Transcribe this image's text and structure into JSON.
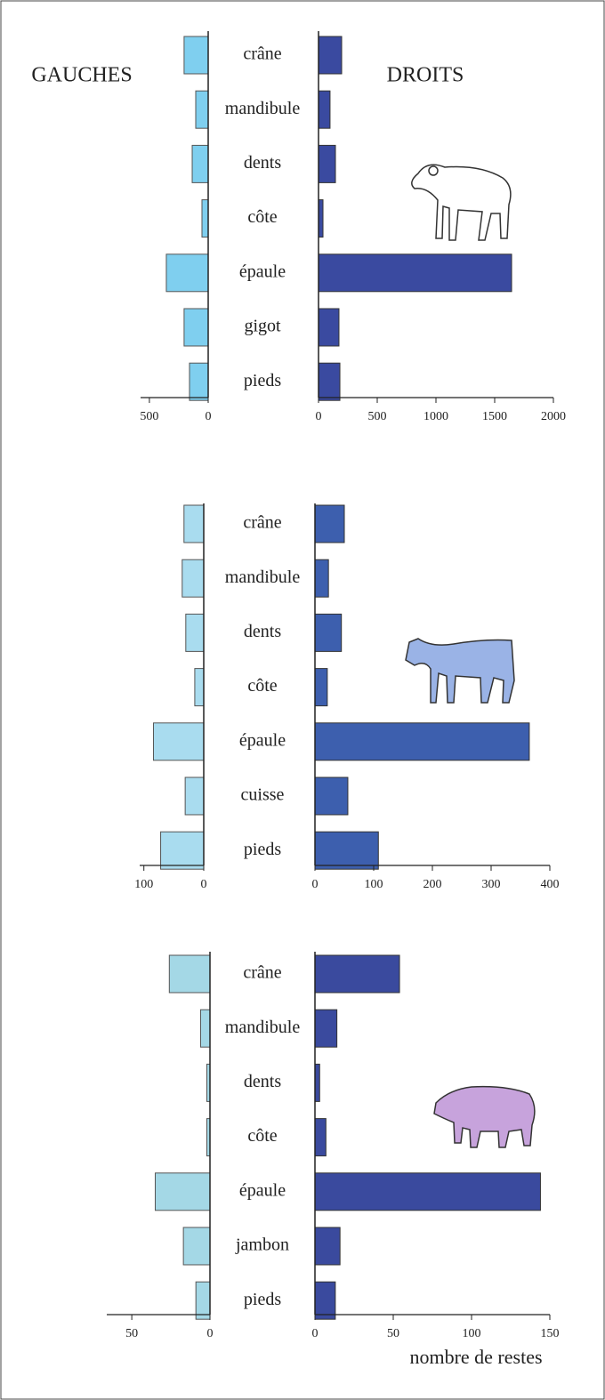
{
  "chart_data": [
    {
      "type": "bar",
      "categories": [
        "crâne",
        "mandibule",
        "dents",
        "côte",
        "épaule",
        "gigot",
        "pieds"
      ],
      "series": [
        {
          "name": "GAUCHES",
          "color": "#7fcfef",
          "values": [
            205,
            106,
            136,
            53,
            356,
            205,
            159
          ],
          "xlim": [
            0,
            575
          ],
          "xticks": [
            500,
            0
          ]
        },
        {
          "name": "DROITS",
          "color": "#3a4aa0",
          "values": [
            197,
            98,
            144,
            38,
            1644,
            174,
            182
          ],
          "xlim": [
            0,
            2000
          ],
          "xticks": [
            0,
            500,
            1000,
            1500,
            2000
          ]
        }
      ]
    },
    {
      "type": "bar",
      "categories": [
        "crâne",
        "mandibule",
        "dents",
        "côte",
        "épaule",
        "cuisse",
        "pieds"
      ],
      "series": [
        {
          "color": "#a9dcef",
          "values": [
            33,
            36,
            30,
            15,
            84,
            31,
            72
          ],
          "xlim": [
            0,
            107
          ],
          "xticks": [
            100,
            0
          ]
        },
        {
          "color": "#3d5fae",
          "values": [
            50,
            23,
            45,
            21,
            365,
            56,
            108
          ],
          "xlim": [
            0,
            400
          ],
          "xticks": [
            0,
            100,
            200,
            300,
            400
          ]
        }
      ]
    },
    {
      "type": "bar",
      "categories": [
        "crâne",
        "mandibule",
        "dents",
        "côte",
        "épaule",
        "jambon",
        "pieds"
      ],
      "xlabel": "nombre de restes",
      "series": [
        {
          "color": "#a4d8e6",
          "values": [
            26,
            6,
            2,
            2,
            35,
            17,
            9
          ],
          "xlim": [
            0,
            66
          ],
          "xticks": [
            50,
            0
          ]
        },
        {
          "color": "#3a4a9e",
          "values": [
            54,
            14,
            3,
            7,
            144,
            16,
            13
          ],
          "xlim": [
            0,
            150
          ],
          "xticks": [
            0,
            50,
            100,
            150
          ]
        }
      ]
    }
  ]
}
